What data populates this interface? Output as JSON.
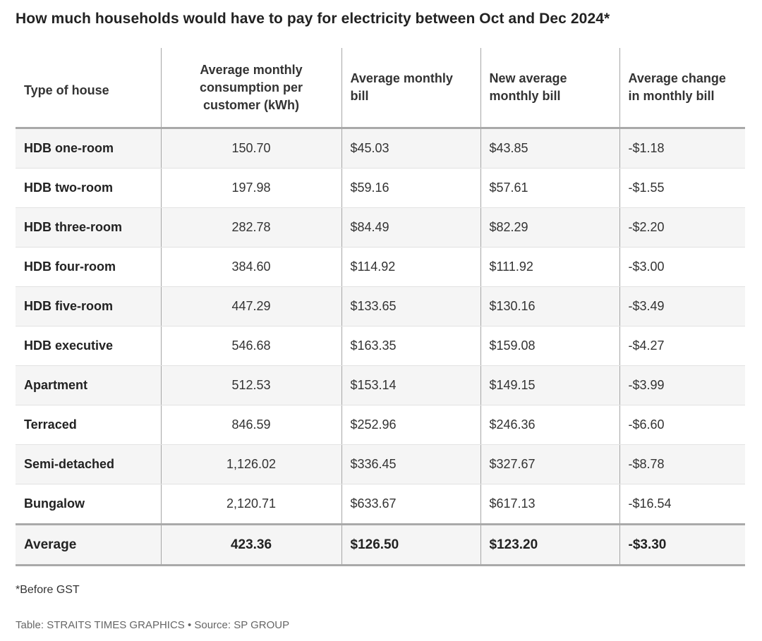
{
  "title": "How much households would have to pay for electricity between Oct and Dec 2024*",
  "headers": {
    "type": "Type of house",
    "consumption": "Average monthly consumption per customer (kWh)",
    "bill": "Average monthly bill",
    "new_bill": "New average monthly bill",
    "change": "Average change in monthly bill"
  },
  "rows": [
    {
      "type": "HDB one-room",
      "consumption": "150.70",
      "bill": "$45.03",
      "new_bill": "$43.85",
      "change": "-$1.18"
    },
    {
      "type": "HDB two-room",
      "consumption": "197.98",
      "bill": "$59.16",
      "new_bill": "$57.61",
      "change": "-$1.55"
    },
    {
      "type": "HDB three-room",
      "consumption": "282.78",
      "bill": "$84.49",
      "new_bill": "$82.29",
      "change": "-$2.20"
    },
    {
      "type": "HDB four-room",
      "consumption": "384.60",
      "bill": "$114.92",
      "new_bill": "$111.92",
      "change": "-$3.00"
    },
    {
      "type": "HDB five-room",
      "consumption": "447.29",
      "bill": "$133.65",
      "new_bill": "$130.16",
      "change": "-$3.49"
    },
    {
      "type": "HDB executive",
      "consumption": "546.68",
      "bill": "$163.35",
      "new_bill": "$159.08",
      "change": "-$4.27"
    },
    {
      "type": "Apartment",
      "consumption": "512.53",
      "bill": "$153.14",
      "new_bill": "$149.15",
      "change": "-$3.99"
    },
    {
      "type": "Terraced",
      "consumption": "846.59",
      "bill": "$252.96",
      "new_bill": "$246.36",
      "change": "-$6.60"
    },
    {
      "type": "Semi-detached",
      "consumption": "1,126.02",
      "bill": "$336.45",
      "new_bill": "$327.67",
      "change": "-$8.78"
    },
    {
      "type": "Bungalow",
      "consumption": "2,120.71",
      "bill": "$633.67",
      "new_bill": "$617.13",
      "change": "-$16.54"
    }
  ],
  "average": {
    "type": "Average",
    "consumption": "423.36",
    "bill": "$126.50",
    "new_bill": "$123.20",
    "change": "-$3.30"
  },
  "note": "*Before GST",
  "source": "Table: STRAITS TIMES GRAPHICS • Source: SP GROUP",
  "chart_data": {
    "type": "table",
    "title": "How much households would have to pay for electricity between Oct and Dec 2024*",
    "columns": [
      "Type of house",
      "Average monthly consumption per customer (kWh)",
      "Average monthly bill",
      "New average monthly bill",
      "Average change in monthly bill"
    ],
    "rows": [
      [
        "HDB one-room",
        150.7,
        45.03,
        43.85,
        -1.18
      ],
      [
        "HDB two-room",
        197.98,
        59.16,
        57.61,
        -1.55
      ],
      [
        "HDB three-room",
        282.78,
        84.49,
        82.29,
        -2.2
      ],
      [
        "HDB four-room",
        384.6,
        114.92,
        111.92,
        -3.0
      ],
      [
        "HDB five-room",
        447.29,
        133.65,
        130.16,
        -3.49
      ],
      [
        "HDB executive",
        546.68,
        163.35,
        159.08,
        -4.27
      ],
      [
        "Apartment",
        512.53,
        153.14,
        149.15,
        -3.99
      ],
      [
        "Terraced",
        846.59,
        252.96,
        246.36,
        -6.6
      ],
      [
        "Semi-detached",
        1126.02,
        336.45,
        327.67,
        -8.78
      ],
      [
        "Bungalow",
        2120.71,
        633.67,
        617.13,
        -16.54
      ],
      [
        "Average",
        423.36,
        126.5,
        123.2,
        -3.3
      ]
    ]
  }
}
